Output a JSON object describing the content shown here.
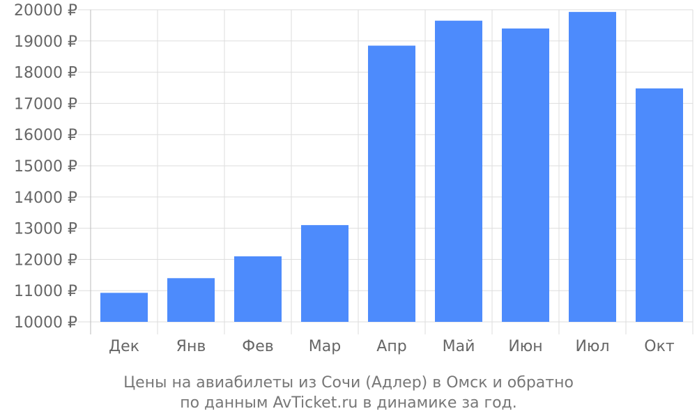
{
  "chart_data": {
    "type": "bar",
    "categories": [
      "Дек",
      "Янв",
      "Фев",
      "Мар",
      "Апр",
      "Май",
      "Июн",
      "Июл",
      "Окт"
    ],
    "values": [
      10930,
      11400,
      12100,
      13100,
      18850,
      19650,
      19400,
      19930,
      17480
    ],
    "ylim": [
      10000,
      20000
    ],
    "yticks": [
      10000,
      11000,
      12000,
      13000,
      14000,
      15000,
      16000,
      17000,
      18000,
      19000,
      20000
    ],
    "ytick_labels": [
      "10000 ₽",
      "11000 ₽",
      "12000 ₽",
      "13000 ₽",
      "14000 ₽",
      "15000 ₽",
      "16000 ₽",
      "17000 ₽",
      "18000 ₽",
      "19000 ₽",
      "20000 ₽"
    ],
    "caption_line1": "Цены на авиабилеты из Сочи (Адлер) в Омск и обратно",
    "caption_line2": "по данным AvTicket.ru в динамике за год.",
    "grid": true,
    "bar_color": "#4d8bfc",
    "grid_color": "#dddddd",
    "axis_color": "#bbbbbb"
  }
}
